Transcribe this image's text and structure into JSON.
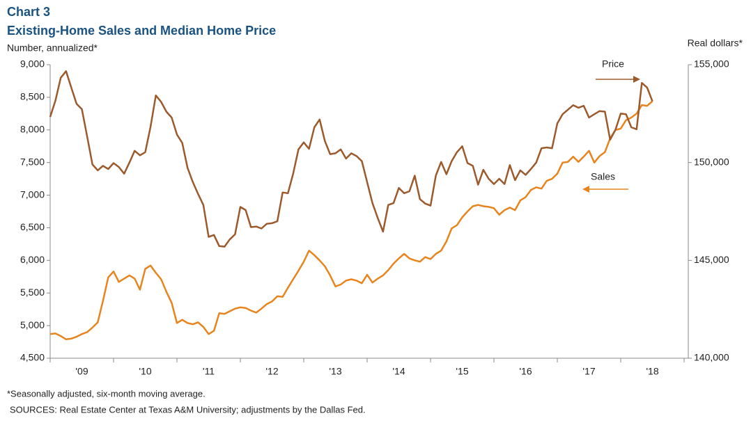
{
  "chart_data": {
    "type": "line",
    "title": "Chart 3",
    "subtitle": "Existing-Home  Sales and Median Home Price",
    "y_label": "Number,  annualized*",
    "y2_label": "Real dollars*",
    "footnote": "*Seasonally adjusted, six-month moving average.",
    "source": "SOURCES:  Real Estate Center at Texas A&M University;  adjustments by the Dallas Fed.",
    "annotations": [
      {
        "text": "Price"
      },
      {
        "text": "Sales"
      }
    ],
    "categories": [
      null,
      null,
      null,
      null,
      null,
      null,
      "'09",
      null,
      null,
      null,
      null,
      null,
      null,
      null,
      null,
      null,
      null,
      null,
      "'10",
      null,
      null,
      null,
      null,
      null,
      null,
      null,
      null,
      null,
      null,
      null,
      "'11",
      null,
      null,
      null,
      null,
      null,
      null,
      null,
      null,
      null,
      null,
      null,
      "'12",
      null,
      null,
      null,
      null,
      null,
      null,
      null,
      null,
      null,
      null,
      null,
      "'13",
      null,
      null,
      null,
      null,
      null,
      null,
      null,
      null,
      null,
      null,
      null,
      "'14",
      null,
      null,
      null,
      null,
      null,
      null,
      null,
      null,
      null,
      null,
      null,
      "'15",
      null,
      null,
      null,
      null,
      null,
      null,
      null,
      null,
      null,
      null,
      null,
      "'16",
      null,
      null,
      null,
      null,
      null,
      null,
      null,
      null,
      null,
      null,
      null,
      "'17",
      null,
      null,
      null,
      null,
      null,
      null,
      null,
      null,
      null,
      null,
      null,
      "'18"
    ],
    "ylim": [
      4500,
      9000
    ],
    "yticks": [
      {
        "value": 4500,
        "label": "4,500"
      },
      {
        "value": 5000,
        "label": "5,000"
      },
      {
        "value": 5500,
        "label": "5,500"
      },
      {
        "value": 6000,
        "label": "6,000"
      },
      {
        "value": 6500,
        "label": "6,500"
      },
      {
        "value": 7000,
        "label": "7,000"
      },
      {
        "value": 7500,
        "label": "7,500"
      },
      {
        "value": 8000,
        "label": "8,000"
      },
      {
        "value": 8500,
        "label": "8,500"
      },
      {
        "value": 9000,
        "label": "9,000"
      }
    ],
    "y2lim": [
      140000,
      155000
    ],
    "y2ticks": [
      {
        "value": 140000,
        "label": "140,000"
      },
      {
        "value": 145000,
        "label": "145,000"
      },
      {
        "value": 150000,
        "label": "150,000"
      },
      {
        "value": 155000,
        "label": "155,000"
      }
    ],
    "grid": false,
    "series": [
      {
        "name": "Sales",
        "color": "#e8841e",
        "axis": "y",
        "values": [
          4870,
          4880,
          4840,
          4790,
          4800,
          4830,
          4870,
          4900,
          4970,
          5050,
          5380,
          5740,
          5830,
          5670,
          5720,
          5770,
          5720,
          5550,
          5870,
          5920,
          5810,
          5710,
          5520,
          5350,
          5040,
          5090,
          5040,
          5020,
          5050,
          4980,
          4870,
          4920,
          5190,
          5180,
          5220,
          5260,
          5280,
          5270,
          5230,
          5200,
          5260,
          5330,
          5370,
          5450,
          5440,
          5580,
          5710,
          5840,
          5980,
          6150,
          6080,
          6000,
          5910,
          5770,
          5600,
          5630,
          5690,
          5710,
          5690,
          5650,
          5780,
          5660,
          5720,
          5770,
          5850,
          5950,
          6030,
          6100,
          6030,
          6000,
          5980,
          6050,
          6020,
          6100,
          6150,
          6290,
          6490,
          6540,
          6660,
          6750,
          6830,
          6850,
          6830,
          6820,
          6800,
          6700,
          6770,
          6810,
          6770,
          6920,
          6970,
          7080,
          7120,
          7100,
          7220,
          7250,
          7330,
          7500,
          7510,
          7590,
          7510,
          7590,
          7680,
          7500,
          7600,
          7660,
          7870,
          8000,
          8020,
          8150,
          8190,
          8250,
          8380,
          8370,
          8440
        ]
      },
      {
        "name": "Price",
        "color": "#9c5a2c",
        "axis": "y2",
        "values": [
          152330,
          153170,
          154330,
          154670,
          153830,
          153000,
          152730,
          151330,
          149900,
          149600,
          149830,
          149670,
          149970,
          149770,
          149430,
          150000,
          150600,
          150370,
          150530,
          151830,
          153430,
          153100,
          152600,
          152300,
          151430,
          151000,
          149730,
          149000,
          148400,
          147830,
          146200,
          146300,
          145730,
          145700,
          146070,
          146330,
          147730,
          147570,
          146700,
          146730,
          146630,
          146870,
          146900,
          147000,
          148470,
          148430,
          149430,
          150670,
          151030,
          150700,
          151800,
          152200,
          151100,
          150430,
          150470,
          150670,
          150200,
          150470,
          150330,
          150070,
          149000,
          147930,
          147170,
          146470,
          147830,
          147930,
          148700,
          148430,
          148530,
          149330,
          148130,
          147900,
          147800,
          149330,
          150030,
          149400,
          150070,
          150530,
          150830,
          149970,
          149830,
          148870,
          149630,
          149170,
          148900,
          149170,
          148900,
          149870,
          149100,
          149600,
          149370,
          149670,
          150000,
          150730,
          150770,
          150730,
          152000,
          152470,
          152700,
          152930,
          152800,
          152900,
          152300,
          152470,
          152630,
          152600,
          151170,
          151670,
          152500,
          152470,
          151800,
          151700,
          154070,
          153830,
          153130
        ]
      }
    ]
  }
}
